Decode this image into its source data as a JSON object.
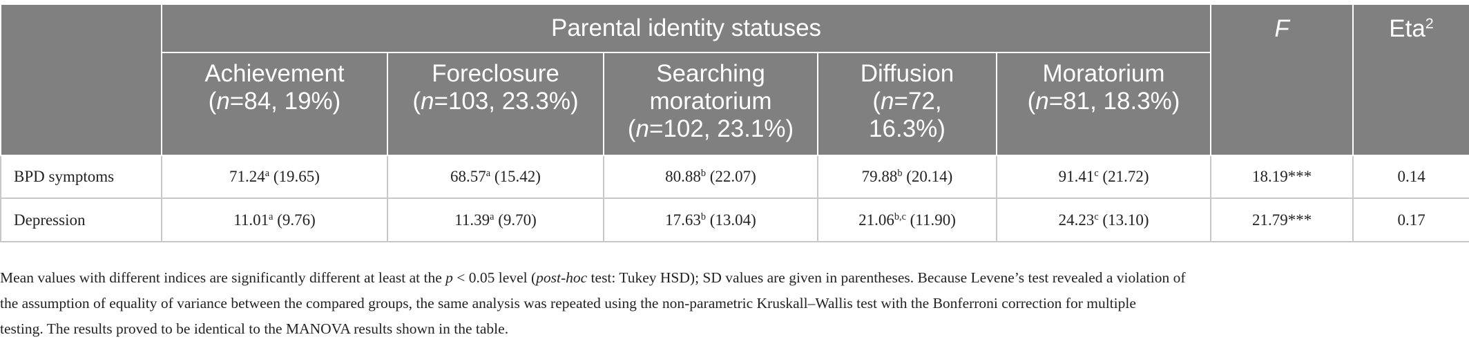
{
  "header": {
    "group_title": "Parental identity statuses",
    "F": [
      {
        "text": "F",
        "style": "italic"
      }
    ],
    "eta": [
      {
        "text": "Eta"
      },
      {
        "text": "2",
        "style": "sup"
      }
    ],
    "groups": [
      {
        "lines": [
          [
            {
              "text": "Achievement"
            }
          ],
          [
            {
              "text": "("
            },
            {
              "text": "n",
              "style": "italic"
            },
            {
              "text": "=84, 19%)"
            }
          ]
        ]
      },
      {
        "lines": [
          [
            {
              "text": "Foreclosure"
            }
          ],
          [
            {
              "text": "("
            },
            {
              "text": "n",
              "style": "italic"
            },
            {
              "text": "=103, 23.3%)"
            }
          ]
        ]
      },
      {
        "lines": [
          [
            {
              "text": "Searching"
            }
          ],
          [
            {
              "text": "moratorium"
            }
          ],
          [
            {
              "text": "("
            },
            {
              "text": "n",
              "style": "italic"
            },
            {
              "text": "=102, 23.1%)"
            }
          ]
        ]
      },
      {
        "lines": [
          [
            {
              "text": "Diffusion"
            }
          ],
          [
            {
              "text": "("
            },
            {
              "text": "n",
              "style": "italic"
            },
            {
              "text": "=72,"
            }
          ],
          [
            {
              "text": "16.3%)"
            }
          ]
        ]
      },
      {
        "lines": [
          [
            {
              "text": "Moratorium"
            }
          ],
          [
            {
              "text": "("
            },
            {
              "text": "n",
              "style": "italic"
            },
            {
              "text": "=81, 18.3%)"
            }
          ]
        ]
      }
    ]
  },
  "table": {
    "rows": [
      {
        "label": "BPD symptoms",
        "cells": [
          [
            {
              "text": "71.24"
            },
            {
              "text": "a",
              "style": "sup"
            },
            {
              "text": " (19.65)"
            }
          ],
          [
            {
              "text": "68.57"
            },
            {
              "text": "a",
              "style": "sup"
            },
            {
              "text": " (15.42)"
            }
          ],
          [
            {
              "text": "80.88"
            },
            {
              "text": "b",
              "style": "sup"
            },
            {
              "text": " (22.07)"
            }
          ],
          [
            {
              "text": "79.88"
            },
            {
              "text": "b",
              "style": "sup"
            },
            {
              "text": " (20.14)"
            }
          ],
          [
            {
              "text": "91.41"
            },
            {
              "text": "c",
              "style": "sup"
            },
            {
              "text": " (21.72)"
            }
          ]
        ],
        "F": "18.19***",
        "eta": "0.14"
      },
      {
        "label": "Depression",
        "cells": [
          [
            {
              "text": "11.01"
            },
            {
              "text": "a",
              "style": "sup"
            },
            {
              "text": " (9.76)"
            }
          ],
          [
            {
              "text": "11.39"
            },
            {
              "text": "a",
              "style": "sup"
            },
            {
              "text": " (9.70)"
            }
          ],
          [
            {
              "text": "17.63"
            },
            {
              "text": "b",
              "style": "sup"
            },
            {
              "text": " (13.04)"
            }
          ],
          [
            {
              "text": "21.06"
            },
            {
              "text": "b,c",
              "style": "sup"
            },
            {
              "text": " (11.90)"
            }
          ],
          [
            {
              "text": "24.23"
            },
            {
              "text": "c",
              "style": "sup"
            },
            {
              "text": " (13.10)"
            }
          ]
        ],
        "F": "21.79***",
        "eta": "0.17"
      }
    ]
  },
  "footnote": {
    "lines": [
      [
        {
          "text": "Mean values with different indices are significantly different at least at the "
        },
        {
          "text": "p",
          "style": "italic"
        },
        {
          "text": " < 0.05 level ("
        },
        {
          "text": "post-hoc",
          "style": "italic"
        },
        {
          "text": " test: Tukey HSD); SD values are given in parentheses. Because Levene’s test revealed a violation of"
        }
      ],
      [
        {
          "text": "the assumption of equality of variance between the compared groups, the same analysis was repeated using the non-parametric Kruskall–Wallis test with the Bonferroni correction for multiple"
        }
      ],
      [
        {
          "text": "testing. The results proved to be identical to the MANOVA results shown in the table."
        }
      ]
    ]
  }
}
